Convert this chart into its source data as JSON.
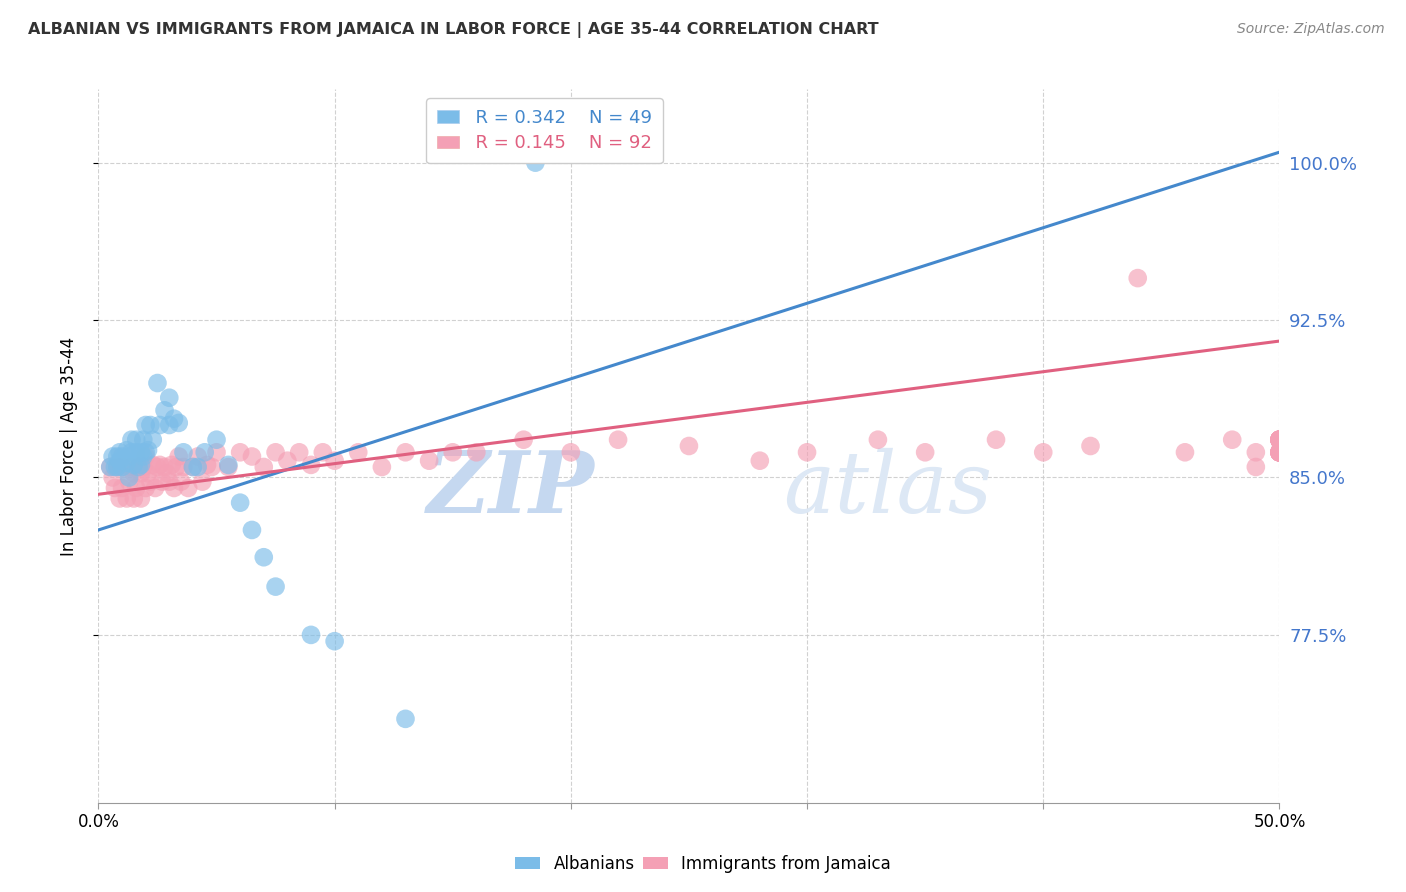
{
  "title": "ALBANIAN VS IMMIGRANTS FROM JAMAICA IN LABOR FORCE | AGE 35-44 CORRELATION CHART",
  "source": "Source: ZipAtlas.com",
  "ylabel": "In Labor Force | Age 35-44",
  "xlim": [
    0.0,
    0.5
  ],
  "ylim": [
    0.695,
    1.035
  ],
  "yticks": [
    0.775,
    0.85,
    0.925,
    1.0
  ],
  "ytick_labels": [
    "77.5%",
    "85.0%",
    "92.5%",
    "100.0%"
  ],
  "xticks": [
    0.0,
    0.1,
    0.2,
    0.3,
    0.4,
    0.5
  ],
  "xtick_labels": [
    "0.0%",
    "",
    "",
    "",
    "",
    "50.0%"
  ],
  "legend_blue_R": "R = 0.342",
  "legend_blue_N": "N = 49",
  "legend_pink_R": "R = 0.145",
  "legend_pink_N": "N = 92",
  "blue_color": "#7bbce8",
  "pink_color": "#f4a0b5",
  "blue_line_color": "#4488cc",
  "pink_line_color": "#e06080",
  "watermark_zip": "ZIP",
  "watermark_atlas": "atlas",
  "watermark_color": "#dde8f5",
  "blue_line_x0": 0.0,
  "blue_line_y0": 0.825,
  "blue_line_x1": 0.5,
  "blue_line_y1": 1.005,
  "pink_line_x0": 0.0,
  "pink_line_y0": 0.842,
  "pink_line_x1": 0.5,
  "pink_line_y1": 0.915,
  "blue_scatter_x": [
    0.005,
    0.006,
    0.007,
    0.008,
    0.008,
    0.009,
    0.009,
    0.01,
    0.01,
    0.012,
    0.012,
    0.013,
    0.013,
    0.014,
    0.014,
    0.015,
    0.016,
    0.016,
    0.017,
    0.018,
    0.018,
    0.019,
    0.019,
    0.02,
    0.02,
    0.021,
    0.022,
    0.023,
    0.025,
    0.026,
    0.028,
    0.03,
    0.03,
    0.032,
    0.034,
    0.036,
    0.04,
    0.042,
    0.045,
    0.05,
    0.055,
    0.06,
    0.065,
    0.07,
    0.075,
    0.09,
    0.1,
    0.13,
    0.185
  ],
  "blue_scatter_y": [
    0.855,
    0.86,
    0.855,
    0.855,
    0.86,
    0.858,
    0.862,
    0.855,
    0.86,
    0.857,
    0.863,
    0.85,
    0.86,
    0.862,
    0.868,
    0.856,
    0.862,
    0.868,
    0.855,
    0.856,
    0.862,
    0.86,
    0.868,
    0.862,
    0.875,
    0.863,
    0.875,
    0.868,
    0.895,
    0.875,
    0.882,
    0.875,
    0.888,
    0.878,
    0.876,
    0.862,
    0.855,
    0.855,
    0.862,
    0.868,
    0.856,
    0.838,
    0.825,
    0.812,
    0.798,
    0.775,
    0.772,
    0.735,
    1.0
  ],
  "pink_scatter_x": [
    0.005,
    0.006,
    0.007,
    0.008,
    0.009,
    0.01,
    0.01,
    0.012,
    0.013,
    0.014,
    0.015,
    0.015,
    0.016,
    0.017,
    0.018,
    0.018,
    0.019,
    0.02,
    0.02,
    0.021,
    0.022,
    0.023,
    0.024,
    0.025,
    0.026,
    0.027,
    0.028,
    0.029,
    0.03,
    0.031,
    0.032,
    0.033,
    0.034,
    0.035,
    0.036,
    0.038,
    0.04,
    0.042,
    0.044,
    0.046,
    0.048,
    0.05,
    0.055,
    0.06,
    0.065,
    0.07,
    0.075,
    0.08,
    0.085,
    0.09,
    0.095,
    0.1,
    0.11,
    0.12,
    0.13,
    0.14,
    0.15,
    0.16,
    0.18,
    0.2,
    0.22,
    0.25,
    0.28,
    0.3,
    0.33,
    0.35,
    0.38,
    0.4,
    0.42,
    0.44,
    0.46,
    0.48,
    0.49,
    0.49,
    0.5,
    0.5,
    0.5,
    0.5,
    0.5,
    0.5,
    0.5,
    0.5,
    0.5,
    0.5,
    0.5,
    0.5,
    0.5,
    0.5,
    0.5,
    0.5,
    0.5,
    0.5
  ],
  "pink_scatter_y": [
    0.855,
    0.85,
    0.845,
    0.855,
    0.84,
    0.845,
    0.855,
    0.84,
    0.848,
    0.855,
    0.84,
    0.852,
    0.845,
    0.855,
    0.84,
    0.852,
    0.855,
    0.845,
    0.86,
    0.852,
    0.848,
    0.856,
    0.845,
    0.855,
    0.856,
    0.848,
    0.855,
    0.852,
    0.848,
    0.856,
    0.845,
    0.855,
    0.86,
    0.848,
    0.855,
    0.845,
    0.855,
    0.86,
    0.848,
    0.856,
    0.855,
    0.862,
    0.855,
    0.862,
    0.86,
    0.855,
    0.862,
    0.858,
    0.862,
    0.856,
    0.862,
    0.858,
    0.862,
    0.855,
    0.862,
    0.858,
    0.862,
    0.862,
    0.868,
    0.862,
    0.868,
    0.865,
    0.858,
    0.862,
    0.868,
    0.862,
    0.868,
    0.862,
    0.865,
    0.945,
    0.862,
    0.868,
    0.855,
    0.862,
    0.862,
    0.868,
    0.862,
    0.868,
    0.862,
    0.868,
    0.862,
    0.868,
    0.862,
    0.868,
    0.862,
    0.868,
    0.862,
    0.868,
    0.862,
    0.868,
    0.862,
    0.868
  ]
}
